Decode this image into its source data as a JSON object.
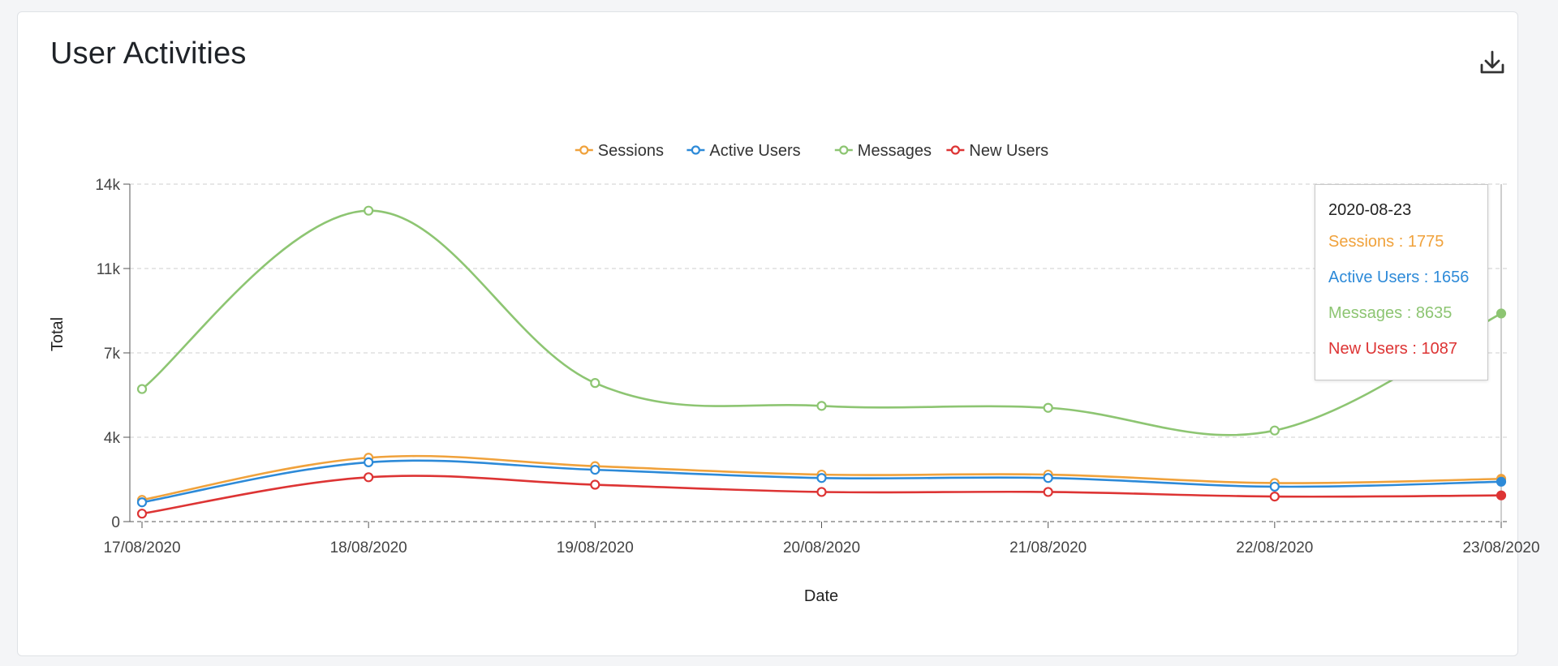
{
  "card": {
    "title": "User Activities",
    "download_icon": "download-icon"
  },
  "tooltip": {
    "date": "2020-08-23",
    "rows": [
      {
        "label": "Sessions",
        "value": "1775",
        "color": "#f0a23c"
      },
      {
        "label": "Active Users",
        "value": "1656",
        "color": "#2d8ad8"
      },
      {
        "label": "Messages",
        "value": "8635",
        "color": "#8dc572"
      },
      {
        "label": "New Users",
        "value": "1087",
        "color": "#dd3434"
      }
    ]
  },
  "chart_data": {
    "type": "line",
    "title": "",
    "xlabel": "Date",
    "ylabel": "Total",
    "categories": [
      "17/08/2020",
      "18/08/2020",
      "19/08/2020",
      "20/08/2020",
      "21/08/2020",
      "22/08/2020",
      "23/08/2020"
    ],
    "ylim": [
      0,
      14000
    ],
    "yticks": [
      0,
      3500,
      7000,
      10500,
      14000
    ],
    "ytick_labels": [
      "0",
      "4k",
      "7k",
      "11k",
      "14k"
    ],
    "grid": true,
    "legend_position": "top-center",
    "series": [
      {
        "name": "Sessions",
        "color": "#f0a23c",
        "values": [
          900,
          2650,
          2300,
          1950,
          1950,
          1600,
          1775
        ]
      },
      {
        "name": "Active Users",
        "color": "#2d8ad8",
        "values": [
          800,
          2460,
          2150,
          1810,
          1810,
          1450,
          1656
        ]
      },
      {
        "name": "Messages",
        "color": "#8dc572",
        "values": [
          5500,
          12900,
          5750,
          4800,
          4720,
          3780,
          8635
        ]
      },
      {
        "name": "New Users",
        "color": "#dd3434",
        "values": [
          330,
          1840,
          1530,
          1230,
          1230,
          1040,
          1087
        ]
      }
    ]
  }
}
